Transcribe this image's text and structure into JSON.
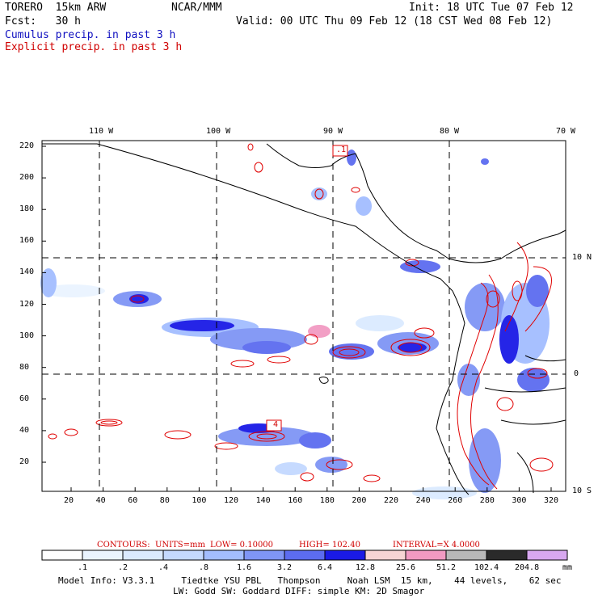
{
  "header": {
    "model_name": "TORERO  15km ARW",
    "org": "NCAR/MMM",
    "init": "Init: 18 UTC Tue 07 Feb 12",
    "fcst": "Fcst:   30 h",
    "valid": "Valid: 00 UTC Thu 09 Feb 12 (18 CST Wed 08 Feb 12)",
    "field1": "Cumulus precip. in past 3 h",
    "field2": "Explicit precip. in past 3 h"
  },
  "axes": {
    "lon_labels": [
      "110 W",
      "100 W",
      "90 W",
      "80 W",
      "70 W"
    ],
    "lat_labels": [
      "10 N",
      "0",
      "10 S"
    ],
    "y_ticks": [
      "220",
      "200",
      "180",
      "160",
      "140",
      "120",
      "100",
      "80",
      "60",
      "40",
      "20"
    ],
    "x_ticks": [
      "20",
      "40",
      "60",
      "80",
      "100",
      "120",
      "140",
      "160",
      "180",
      "200",
      "220",
      "240",
      "260",
      "280",
      "300",
      "320"
    ]
  },
  "contour_labels": [
    ".1",
    "4"
  ],
  "contours_line": {
    "contours": "CONTOURS:",
    "units": "UNITS=mm",
    "low": "LOW= 0.10000",
    "high": "HIGH=  102.40",
    "interval": "INTERVAL=X  4.0000"
  },
  "colorbar": {
    "levels": [
      ".1",
      ".2",
      ".4",
      ".8",
      "1.6",
      "3.2",
      "6.4",
      "12.8",
      "25.6",
      "51.2",
      "102.4",
      "204.8"
    ],
    "unit": "mm",
    "colors": [
      "#ffffff",
      "#eaf4ff",
      "#dbeaff",
      "#c4d9ff",
      "#a3bdff",
      "#7f95f5",
      "#5c6cf0",
      "#1a1ae6",
      "#f7d4d4",
      "#f29ac2",
      "#b8b8b8",
      "#2a2a2a",
      "#d8a8f0"
    ]
  },
  "footer": {
    "line1": "Model Info: V3.3.1     Tiedtke YSU PBL   Thompson     Noah LSM  15 km,    44 levels,    62 sec",
    "line2": "LW: Godd SW: Goddard DIFF: simple KM: 2D Smagor"
  }
}
